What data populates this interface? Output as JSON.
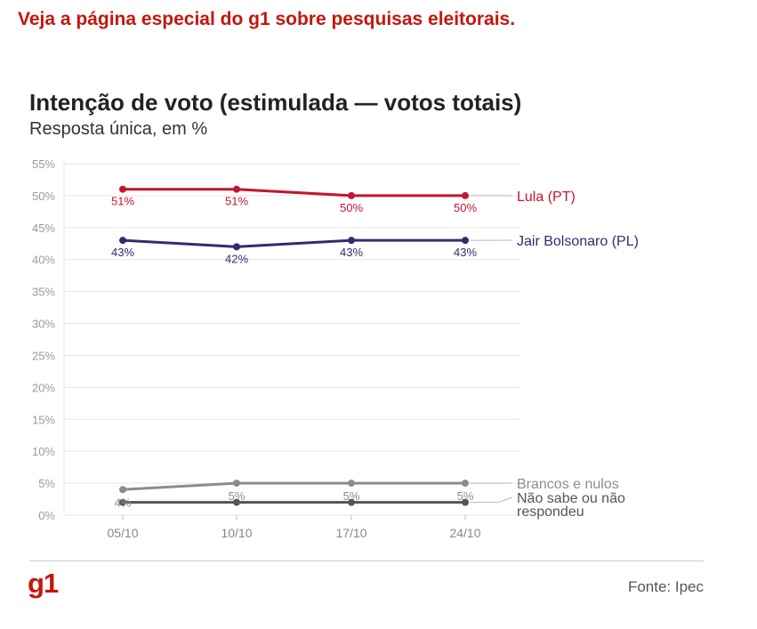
{
  "banner": "Veja a página especial do g1 sobre pesquisas eleitorais.",
  "title": "Intenção de voto (estimulada — votos totais)",
  "subtitle": "Resposta única, em %",
  "source": "Fonte: Ipec",
  "logo": "g1",
  "colors": {
    "brand": "#c4170c",
    "lula": "#c3162f",
    "bolsonaro": "#2e2e6e",
    "brancos": "#8c8c8c",
    "naosabe": "#555555"
  },
  "chart_data": {
    "type": "line",
    "x": [
      "05/10",
      "10/10",
      "17/10",
      "24/10"
    ],
    "ylim": [
      0,
      55
    ],
    "yticks": [
      "0%",
      "5%",
      "10%",
      "15%",
      "20%",
      "25%",
      "30%",
      "35%",
      "40%",
      "45%",
      "50%",
      "55%"
    ],
    "grid": true,
    "legend": "right (direct labels)",
    "series": [
      {
        "name": "Lula (PT)",
        "values": [
          51,
          51,
          50,
          50
        ],
        "labels": [
          "51%",
          "51%",
          "50%",
          "50%"
        ],
        "color": "#c3162f"
      },
      {
        "name": "Jair Bolsonaro (PL)",
        "values": [
          43,
          42,
          43,
          43
        ],
        "labels": [
          "43%",
          "42%",
          "43%",
          "43%"
        ],
        "color": "#2e2e6e"
      },
      {
        "name": "Brancos e nulos",
        "values": [
          4,
          5,
          5,
          5
        ],
        "labels": [
          "4%",
          "5%",
          "5%",
          "5%"
        ],
        "color": "#8c8c8c"
      },
      {
        "name": "Não sabe ou não respondeu",
        "name_lines": [
          "Não sabe ou não",
          "respondeu"
        ],
        "values": [
          2,
          2,
          2,
          2
        ],
        "labels": [],
        "color": "#555555"
      }
    ]
  }
}
